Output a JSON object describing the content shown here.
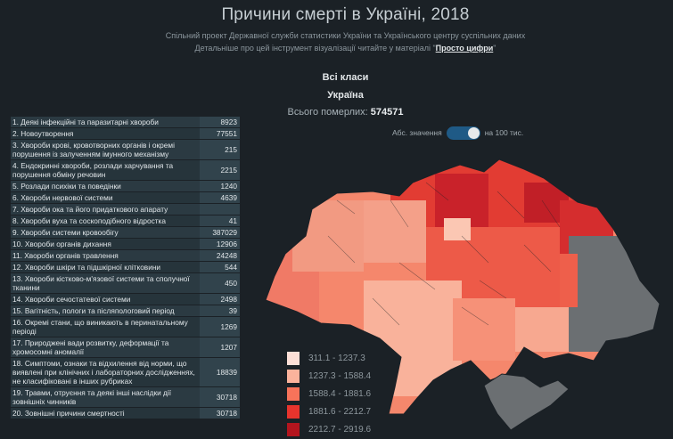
{
  "header": {
    "title": "Причини смерті в Україні, 2018",
    "subtitle1": "Спільний проект Державної служби статистики України та Українського центру суспільних даних",
    "subtitle2_pre": "Детальніше про цей інструмент візуалізації читайте у матеріалі \"",
    "subtitle2_link": "Просто цифри",
    "subtitle2_post": "\""
  },
  "selection": {
    "class_label": "Всі класи",
    "region_label": "Україна",
    "total_label": "Всього померлих:",
    "total_value": "574571"
  },
  "toggle": {
    "left_label": "Абс. значення",
    "right_label": "на 100 тис.",
    "state": "right"
  },
  "causes": [
    {
      "name": "1. Деякі інфекційні та паразитарні хвороби",
      "value": "8923"
    },
    {
      "name": "2. Новоутворення",
      "value": "77551"
    },
    {
      "name": "3. Хвороби крові, кровотворних органів і окремі порушення із залученням імунного механізму",
      "value": "215"
    },
    {
      "name": "4. Ендокринні хвороби, розлади харчування та порушення обміну речовин",
      "value": "2215"
    },
    {
      "name": "5. Розлади психіки та поведінки",
      "value": "1240"
    },
    {
      "name": "6. Хвороби нервової системи",
      "value": "4639"
    },
    {
      "name": "7. Хвороби ока та його придаткового апарату",
      "value": ""
    },
    {
      "name": "8. Хвороби вуха та соскоподібного відростка",
      "value": "41"
    },
    {
      "name": "9. Хвороби системи кровообігу",
      "value": "387029"
    },
    {
      "name": "10. Хвороби органів дихання",
      "value": "12906"
    },
    {
      "name": "11. Хвороби органів травлення",
      "value": "24248"
    },
    {
      "name": "12. Хвороби шкіри та підшкірної клітковини",
      "value": "544"
    },
    {
      "name": "13. Хвороби кістково-м'язової системи та сполучної тканини",
      "value": "450"
    },
    {
      "name": "14. Хвороби сечостатевої системи",
      "value": "2498"
    },
    {
      "name": "15. Вагітність, пологи та післяпологовий період",
      "value": "39"
    },
    {
      "name": "16. Окремі стани, що виникають в перинатальному періоді",
      "value": "1269"
    },
    {
      "name": "17. Природжені вади розвитку, деформації та хромосомні аномалії",
      "value": "1207"
    },
    {
      "name": "18. Симптоми, ознаки та відхилення від норми, що виявлені при клінічних і лабораторних дослідженнях, не класифіковані в інших рубриках",
      "value": "18839"
    },
    {
      "name": "19. Травми, отруєння та деякі інші наслідки дії зовнішніх чинників",
      "value": "30718"
    },
    {
      "name": "20. Зовнішні причини смертності",
      "value": "30718"
    }
  ],
  "legend": [
    {
      "label": "311.1 - 1237.3",
      "color": "#fde0d7"
    },
    {
      "label": "1237.3 - 1588.4",
      "color": "#fbb39c"
    },
    {
      "label": "1588.4 - 1881.6",
      "color": "#f7735a"
    },
    {
      "label": "1881.6 - 2212.7",
      "color": "#e8342d"
    },
    {
      "label": "2212.7 - 2919.6",
      "color": "#b3151e"
    }
  ],
  "colors": {
    "background": "#1b2126",
    "no_data": "#6b6f72",
    "accent": "#1f5a86"
  }
}
